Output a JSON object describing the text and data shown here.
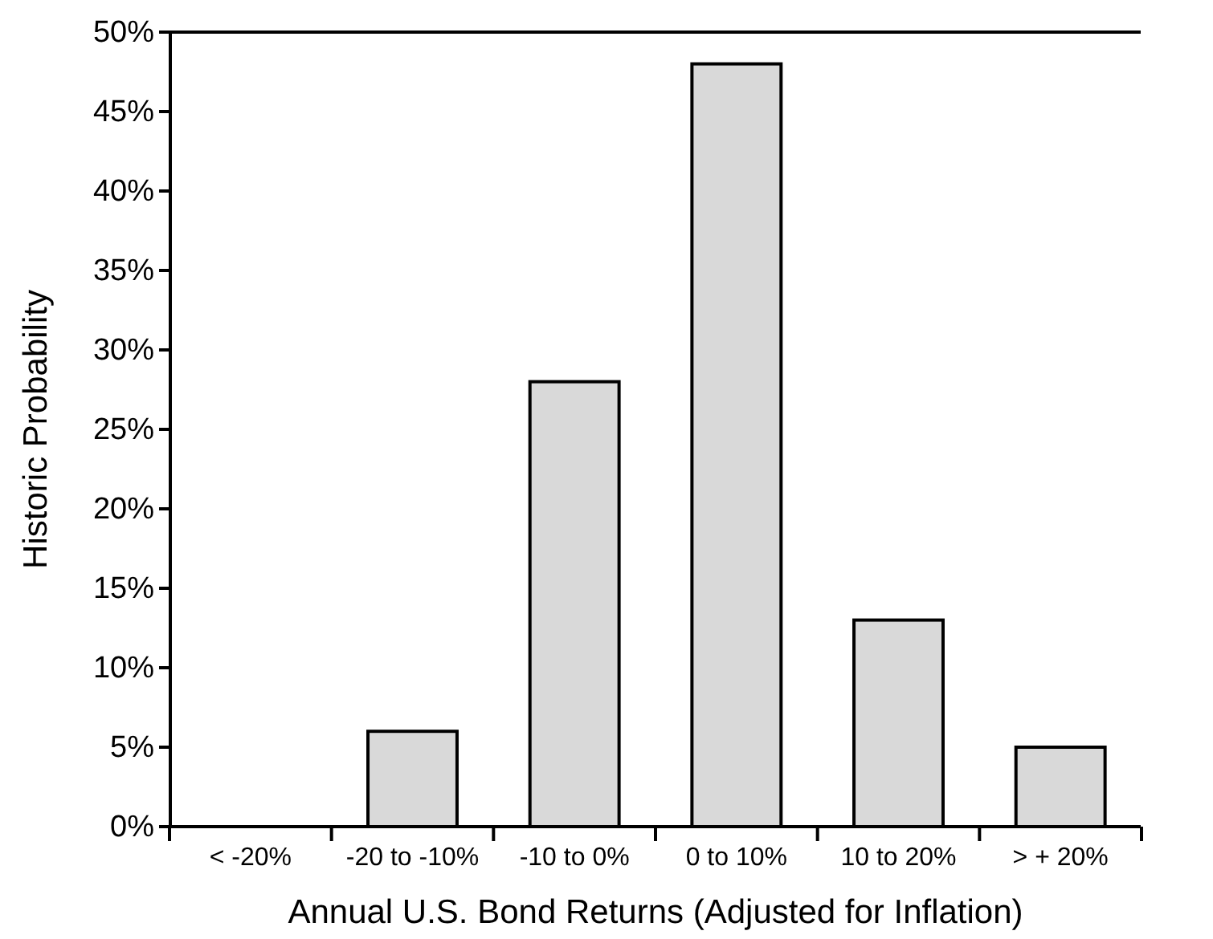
{
  "chart_data": {
    "type": "bar",
    "xlabel": "Annual U.S. Bond Returns (Adjusted for Inflation)",
    "ylabel": "Historic Probability",
    "categories": [
      "< -20%",
      "-20 to -10%",
      "-10 to 0%",
      "0 to 10%",
      "10 to 20%",
      "> + 20%"
    ],
    "values": [
      0,
      6,
      28,
      48,
      13,
      5
    ],
    "color": "#d9d9d9",
    "ylim": [
      0,
      50
    ],
    "yticks": [
      {
        "value": 0,
        "label": "0%"
      },
      {
        "value": 5,
        "label": "5%"
      },
      {
        "value": 10,
        "label": "10%"
      },
      {
        "value": 15,
        "label": "15%"
      },
      {
        "value": 20,
        "label": "20%"
      },
      {
        "value": 25,
        "label": "25%"
      },
      {
        "value": 30,
        "label": "30%"
      },
      {
        "value": 35,
        "label": "35%"
      },
      {
        "value": 40,
        "label": "40%"
      },
      {
        "value": 45,
        "label": "45%"
      },
      {
        "value": 50,
        "label": "50%"
      }
    ],
    "grid": false
  }
}
